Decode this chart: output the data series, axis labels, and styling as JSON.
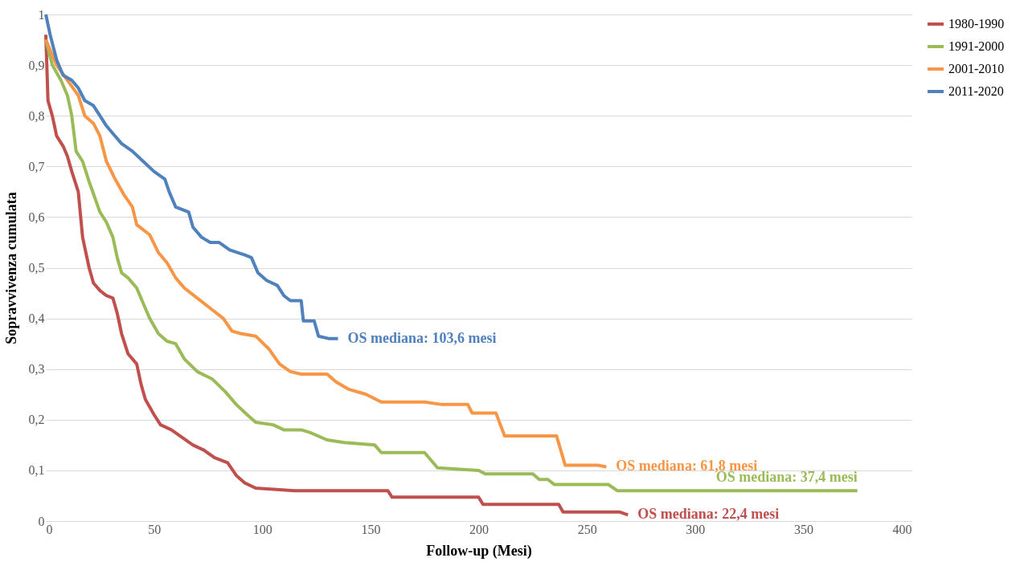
{
  "chart_data": {
    "type": "line",
    "xlabel": "Follow-up (Mesi)",
    "ylabel": "Sopravvivenza cumulata",
    "xlim": [
      0,
      400
    ],
    "xticks": [
      0,
      50,
      100,
      150,
      200,
      250,
      300,
      350,
      400
    ],
    "ylim": [
      0,
      1
    ],
    "yticks": [
      0,
      {
        "value": 0.1,
        "label": "0,1"
      },
      {
        "value": 0.2,
        "label": "0,2"
      },
      {
        "value": 0.3,
        "label": "0,3"
      },
      {
        "value": 0.4,
        "label": "0,4"
      },
      {
        "value": 0.5,
        "label": "0,5"
      },
      {
        "value": 0.6,
        "label": "0,6"
      },
      {
        "value": 0.7,
        "label": "0,7"
      },
      {
        "value": 0.8,
        "label": "0,8"
      },
      {
        "value": 0.9,
        "label": "0,9"
      },
      1
    ],
    "grid": "y",
    "legend": "right",
    "marker": "none",
    "line_style": "solid",
    "series": [
      {
        "name": "1980-1990",
        "color": "#c0504d",
        "x": [
          0,
          1,
          3,
          5,
          8,
          10,
          12,
          15,
          17,
          20,
          22,
          25,
          28,
          31,
          33,
          35,
          38,
          42,
          44,
          46,
          50,
          53,
          58,
          63,
          68,
          73,
          78,
          84,
          88,
          92,
          97,
          115,
          158,
          160,
          200,
          202,
          237,
          239,
          265,
          269
        ],
        "values": [
          0.96,
          0.83,
          0.8,
          0.76,
          0.74,
          0.72,
          0.69,
          0.65,
          0.56,
          0.5,
          0.47,
          0.455,
          0.445,
          0.44,
          0.41,
          0.37,
          0.33,
          0.31,
          0.27,
          0.24,
          0.21,
          0.19,
          0.18,
          0.165,
          0.15,
          0.14,
          0.125,
          0.115,
          0.09,
          0.075,
          0.065,
          0.06,
          0.06,
          0.047,
          0.047,
          0.033,
          0.033,
          0.018,
          0.018,
          0.012
        ]
      },
      {
        "name": "1991-2000",
        "color": "#9bbb59",
        "x": [
          0,
          3,
          7,
          10,
          12,
          14,
          17,
          20,
          25,
          28,
          31,
          33,
          35,
          38,
          42,
          45,
          48,
          52,
          56,
          60,
          64,
          70,
          77,
          83,
          88,
          93,
          97,
          105,
          110,
          118,
          122,
          130,
          138,
          152,
          155,
          175,
          181,
          200,
          203,
          225,
          228,
          232,
          235,
          260,
          264,
          375
        ],
        "values": [
          0.95,
          0.9,
          0.87,
          0.84,
          0.8,
          0.73,
          0.71,
          0.67,
          0.61,
          0.59,
          0.56,
          0.52,
          0.49,
          0.48,
          0.46,
          0.43,
          0.4,
          0.37,
          0.355,
          0.35,
          0.32,
          0.295,
          0.28,
          0.255,
          0.23,
          0.21,
          0.195,
          0.19,
          0.18,
          0.18,
          0.175,
          0.16,
          0.155,
          0.15,
          0.135,
          0.135,
          0.105,
          0.1,
          0.093,
          0.093,
          0.082,
          0.082,
          0.072,
          0.072,
          0.06,
          0.06
        ]
      },
      {
        "name": "2001-2010",
        "color": "#f79646",
        "x": [
          0,
          5,
          10,
          15,
          18,
          22,
          25,
          28,
          32,
          36,
          40,
          42,
          48,
          52,
          56,
          60,
          64,
          70,
          76,
          82,
          86,
          90,
          97,
          103,
          108,
          113,
          118,
          130,
          134,
          140,
          148,
          155,
          175,
          183,
          195,
          197,
          208,
          212,
          236,
          240,
          255,
          259
        ],
        "values": [
          0.95,
          0.9,
          0.87,
          0.84,
          0.8,
          0.785,
          0.76,
          0.71,
          0.675,
          0.645,
          0.62,
          0.585,
          0.565,
          0.53,
          0.51,
          0.48,
          0.46,
          0.44,
          0.42,
          0.4,
          0.375,
          0.37,
          0.365,
          0.34,
          0.31,
          0.295,
          0.29,
          0.29,
          0.275,
          0.26,
          0.25,
          0.235,
          0.235,
          0.23,
          0.23,
          0.213,
          0.213,
          0.168,
          0.168,
          0.11,
          0.11,
          0.107
        ]
      },
      {
        "name": "2011-2020",
        "color": "#4f81bd",
        "x": [
          0,
          2,
          5,
          8,
          12,
          15,
          18,
          22,
          25,
          28,
          32,
          35,
          40,
          45,
          50,
          55,
          57,
          60,
          66,
          68,
          72,
          76,
          80,
          85,
          92,
          95,
          98,
          102,
          107,
          110,
          113,
          118,
          119,
          124,
          126,
          131,
          135
        ],
        "values": [
          1.0,
          0.96,
          0.91,
          0.88,
          0.87,
          0.855,
          0.83,
          0.82,
          0.8,
          0.78,
          0.76,
          0.745,
          0.73,
          0.71,
          0.69,
          0.675,
          0.65,
          0.62,
          0.61,
          0.58,
          0.56,
          0.55,
          0.55,
          0.535,
          0.525,
          0.52,
          0.49,
          0.475,
          0.465,
          0.445,
          0.435,
          0.435,
          0.395,
          0.395,
          0.365,
          0.36,
          0.36
        ]
      }
    ],
    "annotations": [
      "OS mediana: 22,4 mesi",
      "OS mediana: 37,4 mesi",
      "OS mediana: 61,8 mesi",
      "OS mediana: 103,6 mesi"
    ]
  }
}
